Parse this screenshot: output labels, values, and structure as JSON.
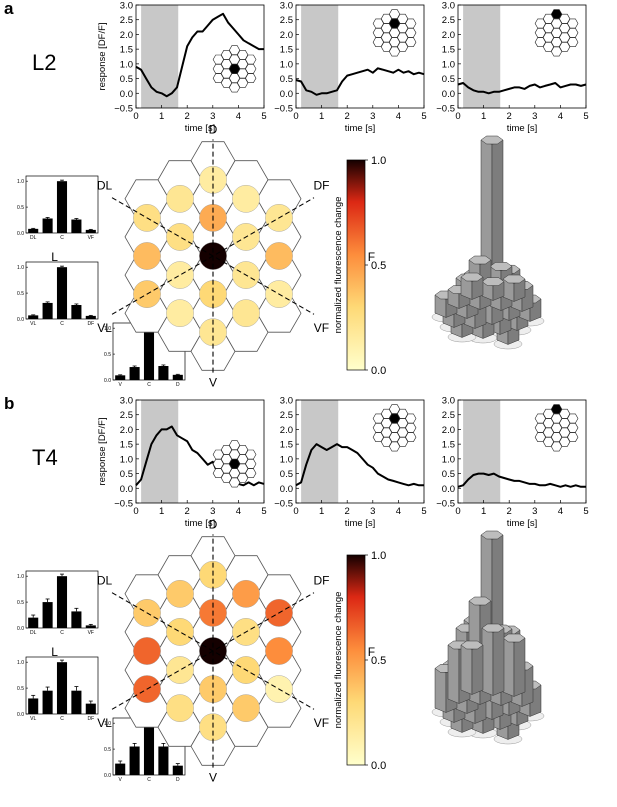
{
  "panels": [
    {
      "letter": "a",
      "cell": "L2",
      "traces": {
        "ylabel": "response [DF/F]",
        "xlabel": "time [s]",
        "xlim": [
          0,
          5
        ],
        "ylim": [
          -0.5,
          3.0
        ],
        "xticks": [
          "0",
          "1",
          "2",
          "3",
          "4",
          "5"
        ],
        "yticks": [
          "−0.5",
          "0.0",
          "0.5",
          "1.0",
          "1.5",
          "2.0",
          "2.5",
          "3.0"
        ],
        "stim_window": [
          0.2,
          1.65
        ],
        "series": [
          {
            "stim": "center",
            "x": [
              0,
              0.2,
              0.4,
              0.6,
              0.8,
              1.0,
              1.2,
              1.4,
              1.6,
              1.8,
              2.0,
              2.2,
              2.4,
              2.6,
              2.8,
              3.0,
              3.2,
              3.4,
              3.6,
              3.8,
              4.0,
              4.2,
              4.4,
              4.6,
              4.8,
              5.0
            ],
            "y": [
              0.9,
              0.8,
              0.5,
              0.2,
              0.05,
              0.0,
              -0.1,
              0.0,
              0.2,
              0.9,
              1.6,
              1.9,
              2.1,
              2.1,
              2.3,
              2.5,
              2.6,
              2.7,
              2.4,
              2.2,
              2.0,
              1.8,
              1.7,
              1.6,
              1.5,
              1.5
            ]
          },
          {
            "stim": "adjacent",
            "x": [
              0,
              0.2,
              0.4,
              0.6,
              0.8,
              1.0,
              1.2,
              1.4,
              1.6,
              1.8,
              2.0,
              2.2,
              2.4,
              2.6,
              2.8,
              3.0,
              3.2,
              3.4,
              3.6,
              3.8,
              4.0,
              4.2,
              4.4,
              4.6,
              4.8,
              5.0
            ],
            "y": [
              0.45,
              0.4,
              0.1,
              0.05,
              -0.05,
              0.0,
              0.0,
              0.05,
              0.1,
              0.4,
              0.6,
              0.65,
              0.7,
              0.75,
              0.8,
              0.7,
              0.85,
              0.8,
              0.75,
              0.7,
              0.8,
              0.7,
              0.75,
              0.65,
              0.7,
              0.65
            ]
          },
          {
            "stim": "distal",
            "x": [
              0,
              0.2,
              0.4,
              0.6,
              0.8,
              1.0,
              1.2,
              1.4,
              1.6,
              1.8,
              2.0,
              2.2,
              2.4,
              2.6,
              2.8,
              3.0,
              3.2,
              3.4,
              3.6,
              3.8,
              4.0,
              4.2,
              4.4,
              4.6,
              4.8,
              5.0
            ],
            "y": [
              0.3,
              0.35,
              0.2,
              0.1,
              0.05,
              0.05,
              0.0,
              0.05,
              0.05,
              0.1,
              0.15,
              0.2,
              0.2,
              0.15,
              0.25,
              0.3,
              0.2,
              0.25,
              0.3,
              0.35,
              0.2,
              0.25,
              0.3,
              0.3,
              0.25,
              0.3
            ]
          }
        ]
      },
      "dir_labels": {
        "top": "D",
        "bottom": "V",
        "top_left": "DL",
        "top_right": "DF",
        "left": "L",
        "right": "F",
        "bottom_left": "VL",
        "bottom_right": "VF"
      },
      "hex_intensity": [
        0.15,
        0.2,
        0.15,
        0.25,
        0.45,
        0.2,
        0.25,
        0.2,
        0.4,
        1.0,
        0.4,
        0.15,
        0.2,
        0.35,
        0.3,
        0.15,
        0.15,
        0.2,
        0.2
      ],
      "bars": [
        {
          "categories": [
            "DL",
            "",
            "C",
            "",
            "VF"
          ],
          "values": [
            0.08,
            0.28,
            1.0,
            0.26,
            0.06
          ],
          "errors": [
            0.01,
            0.02,
            0.02,
            0.02,
            0.01
          ],
          "yticks": [
            "0.0",
            "0.5",
            "1.0"
          ]
        },
        {
          "categories": [
            "VL",
            "",
            "C",
            "",
            "DF"
          ],
          "values": [
            0.07,
            0.31,
            1.0,
            0.27,
            0.06
          ],
          "errors": [
            0.01,
            0.02,
            0.02,
            0.02,
            0.01
          ],
          "yticks": [
            "0.0",
            "0.5",
            "1.0"
          ]
        },
        {
          "categories": [
            "V",
            "",
            "C",
            "",
            "D"
          ],
          "values": [
            0.09,
            0.25,
            1.0,
            0.27,
            0.1
          ],
          "errors": [
            0.01,
            0.02,
            0.02,
            0.02,
            0.01
          ],
          "yticks": [
            "0.0",
            "0.5",
            "1.0"
          ]
        }
      ],
      "colorbar": {
        "label": "normalized fluorescence change",
        "ticks": [
          "1.0",
          "0.5",
          "0.0"
        ]
      },
      "columns_3d": [
        {
          "c": -2,
          "r": 1.5,
          "v": 0.1
        },
        {
          "c": -1,
          "r": 2,
          "v": 0.08
        },
        {
          "c": 0,
          "r": 2.5,
          "v": 0.1
        },
        {
          "c": 1,
          "r": 2,
          "v": 0.08
        },
        {
          "c": 2,
          "r": 1.5,
          "v": 0.1
        },
        {
          "c": -2,
          "r": 0.5,
          "v": 0.14
        },
        {
          "c": -1,
          "r": 1,
          "v": 0.2
        },
        {
          "c": 0,
          "r": 1.5,
          "v": 0.25
        },
        {
          "c": 1,
          "r": 1,
          "v": 0.22
        },
        {
          "c": 2,
          "r": 0.5,
          "v": 0.12
        },
        {
          "c": -2,
          "r": -0.5,
          "v": 0.1
        },
        {
          "c": -1,
          "r": 0,
          "v": 0.28
        },
        {
          "c": 0,
          "r": 0,
          "v": 1.0
        },
        {
          "c": 1,
          "r": 0,
          "v": 0.26
        },
        {
          "c": 2,
          "r": -0.5,
          "v": 0.1
        },
        {
          "c": -1,
          "r": -1,
          "v": 0.22
        },
        {
          "c": 0,
          "r": -1,
          "v": 0.18
        },
        {
          "c": 1,
          "r": -1,
          "v": 0.24
        },
        {
          "c": 0,
          "r": -2,
          "v": 0.1
        }
      ]
    },
    {
      "letter": "b",
      "cell": "T4",
      "traces": {
        "ylabel": "response [DF/F]",
        "xlabel": "time [s]",
        "xlim": [
          0,
          5
        ],
        "ylim": [
          -0.5,
          3.0
        ],
        "xticks": [
          "0",
          "1",
          "2",
          "3",
          "4",
          "5"
        ],
        "yticks": [
          "−0.5",
          "0.0",
          "0.5",
          "1.0",
          "1.5",
          "2.0",
          "2.5",
          "3.0"
        ],
        "stim_window": [
          0.2,
          1.65
        ],
        "series": [
          {
            "stim": "center",
            "x": [
              0,
              0.2,
              0.4,
              0.6,
              0.8,
              1.0,
              1.2,
              1.4,
              1.6,
              1.8,
              2.0,
              2.2,
              2.4,
              2.6,
              2.8,
              3.0,
              3.2,
              3.4,
              3.6,
              3.8,
              4.0,
              4.2,
              4.4,
              4.6,
              4.8,
              5.0
            ],
            "y": [
              0.1,
              0.3,
              0.9,
              1.5,
              1.8,
              2.0,
              2.0,
              2.1,
              1.8,
              1.7,
              1.6,
              1.3,
              1.2,
              1.0,
              0.8,
              0.9,
              0.5,
              0.4,
              0.3,
              0.2,
              0.15,
              0.1,
              0.2,
              0.1,
              0.2,
              0.15
            ]
          },
          {
            "stim": "adjacent",
            "x": [
              0,
              0.2,
              0.4,
              0.6,
              0.8,
              1.0,
              1.2,
              1.4,
              1.6,
              1.8,
              2.0,
              2.2,
              2.4,
              2.6,
              2.8,
              3.0,
              3.2,
              3.4,
              3.6,
              3.8,
              4.0,
              4.2,
              4.4,
              4.6,
              4.8,
              5.0
            ],
            "y": [
              0.1,
              0.2,
              0.8,
              1.3,
              1.5,
              1.4,
              1.3,
              1.4,
              1.5,
              1.4,
              1.4,
              1.3,
              1.2,
              1.0,
              0.8,
              0.7,
              0.5,
              0.4,
              0.3,
              0.25,
              0.2,
              0.15,
              0.1,
              0.15,
              0.1,
              0.1
            ]
          },
          {
            "stim": "distal",
            "x": [
              0,
              0.2,
              0.4,
              0.6,
              0.8,
              1.0,
              1.2,
              1.4,
              1.6,
              1.8,
              2.0,
              2.2,
              2.4,
              2.6,
              2.8,
              3.0,
              3.2,
              3.4,
              3.6,
              3.8,
              4.0,
              4.2,
              4.4,
              4.6,
              4.8,
              5.0
            ],
            "y": [
              0.05,
              0.1,
              0.3,
              0.45,
              0.5,
              0.5,
              0.45,
              0.5,
              0.4,
              0.35,
              0.3,
              0.25,
              0.25,
              0.2,
              0.15,
              0.15,
              0.1,
              0.1,
              0.15,
              0.1,
              0.05,
              0.1,
              0.05,
              0.1,
              0.05,
              0.05
            ]
          }
        ]
      },
      "dir_labels": {
        "top": "D",
        "bottom": "V",
        "top_left": "DL",
        "top_right": "DF",
        "left": "L",
        "right": "F",
        "bottom_left": "VL",
        "bottom_right": "VF"
      },
      "hex_intensity": [
        0.3,
        0.35,
        0.5,
        0.35,
        0.6,
        0.65,
        0.3,
        0.25,
        0.65,
        1.0,
        0.55,
        0.2,
        0.3,
        0.65,
        0.35,
        0.1,
        0.25,
        0.35,
        0.25
      ],
      "bars": [
        {
          "categories": [
            "DL",
            "",
            "C",
            "",
            "VF"
          ],
          "values": [
            0.2,
            0.5,
            1.0,
            0.32,
            0.05
          ],
          "errors": [
            0.05,
            0.06,
            0.04,
            0.06,
            0.02
          ],
          "yticks": [
            "0.0",
            "0.5",
            "1.0"
          ]
        },
        {
          "categories": [
            "VL",
            "",
            "C",
            "",
            "DF"
          ],
          "values": [
            0.3,
            0.45,
            1.0,
            0.45,
            0.2
          ],
          "errors": [
            0.06,
            0.07,
            0.04,
            0.08,
            0.05
          ],
          "yticks": [
            "0.0",
            "0.5",
            "1.0"
          ]
        },
        {
          "categories": [
            "V",
            "",
            "C",
            "",
            "D"
          ],
          "values": [
            0.22,
            0.55,
            1.0,
            0.55,
            0.18
          ],
          "errors": [
            0.05,
            0.06,
            0.04,
            0.06,
            0.04
          ],
          "yticks": [
            "0.0",
            "0.5",
            "1.0"
          ]
        }
      ],
      "colorbar": {
        "label": "normalized fluorescence change",
        "ticks": [
          "1.0",
          "0.5",
          "0.0"
        ]
      },
      "columns_3d": [
        {
          "c": -2,
          "r": 1.5,
          "v": 0.22
        },
        {
          "c": -1,
          "r": 2,
          "v": 0.3
        },
        {
          "c": 0,
          "r": 2.5,
          "v": 0.25
        },
        {
          "c": 1,
          "r": 2,
          "v": 0.35
        },
        {
          "c": 2,
          "r": 1.5,
          "v": 0.3
        },
        {
          "c": -2,
          "r": 0.5,
          "v": 0.3
        },
        {
          "c": -1,
          "r": 1,
          "v": 0.45
        },
        {
          "c": 0,
          "r": 1.5,
          "v": 0.55
        },
        {
          "c": 1,
          "r": 1,
          "v": 0.4
        },
        {
          "c": 2,
          "r": 0.5,
          "v": 0.2
        },
        {
          "c": -2,
          "r": -0.5,
          "v": 0.2
        },
        {
          "c": -1,
          "r": 0,
          "v": 0.55
        },
        {
          "c": 0,
          "r": 0,
          "v": 1.0
        },
        {
          "c": 1,
          "r": 0,
          "v": 0.45
        },
        {
          "c": 2,
          "r": -0.5,
          "v": 0.15
        },
        {
          "c": -1,
          "r": -1,
          "v": 0.35
        },
        {
          "c": 0,
          "r": -1,
          "v": 0.35
        },
        {
          "c": 1,
          "r": -1,
          "v": 0.3
        },
        {
          "c": 0,
          "r": -2,
          "v": 0.15
        }
      ]
    }
  ]
}
